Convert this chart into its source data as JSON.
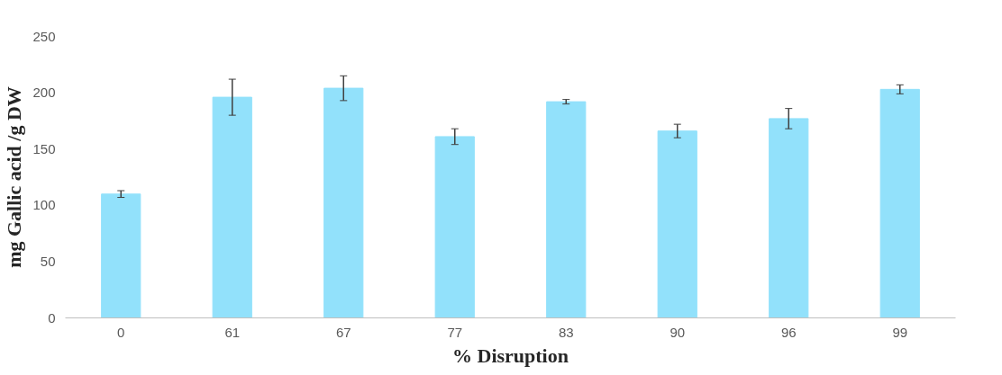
{
  "chart_data": {
    "type": "bar",
    "xlabel": "% Disruption",
    "ylabel": "mg Gallic acid /g DW",
    "categories": [
      "0",
      "61",
      "67",
      "77",
      "83",
      "90",
      "96",
      "99"
    ],
    "values": [
      110,
      196,
      204,
      161,
      192,
      166,
      177,
      203
    ],
    "errors": [
      3,
      16,
      11,
      7,
      2,
      6,
      9,
      4
    ],
    "color": "#92e1fb",
    "ylim": [
      0,
      250
    ],
    "yticks": [
      0,
      50,
      100,
      150,
      200,
      250
    ],
    "grid": false
  }
}
